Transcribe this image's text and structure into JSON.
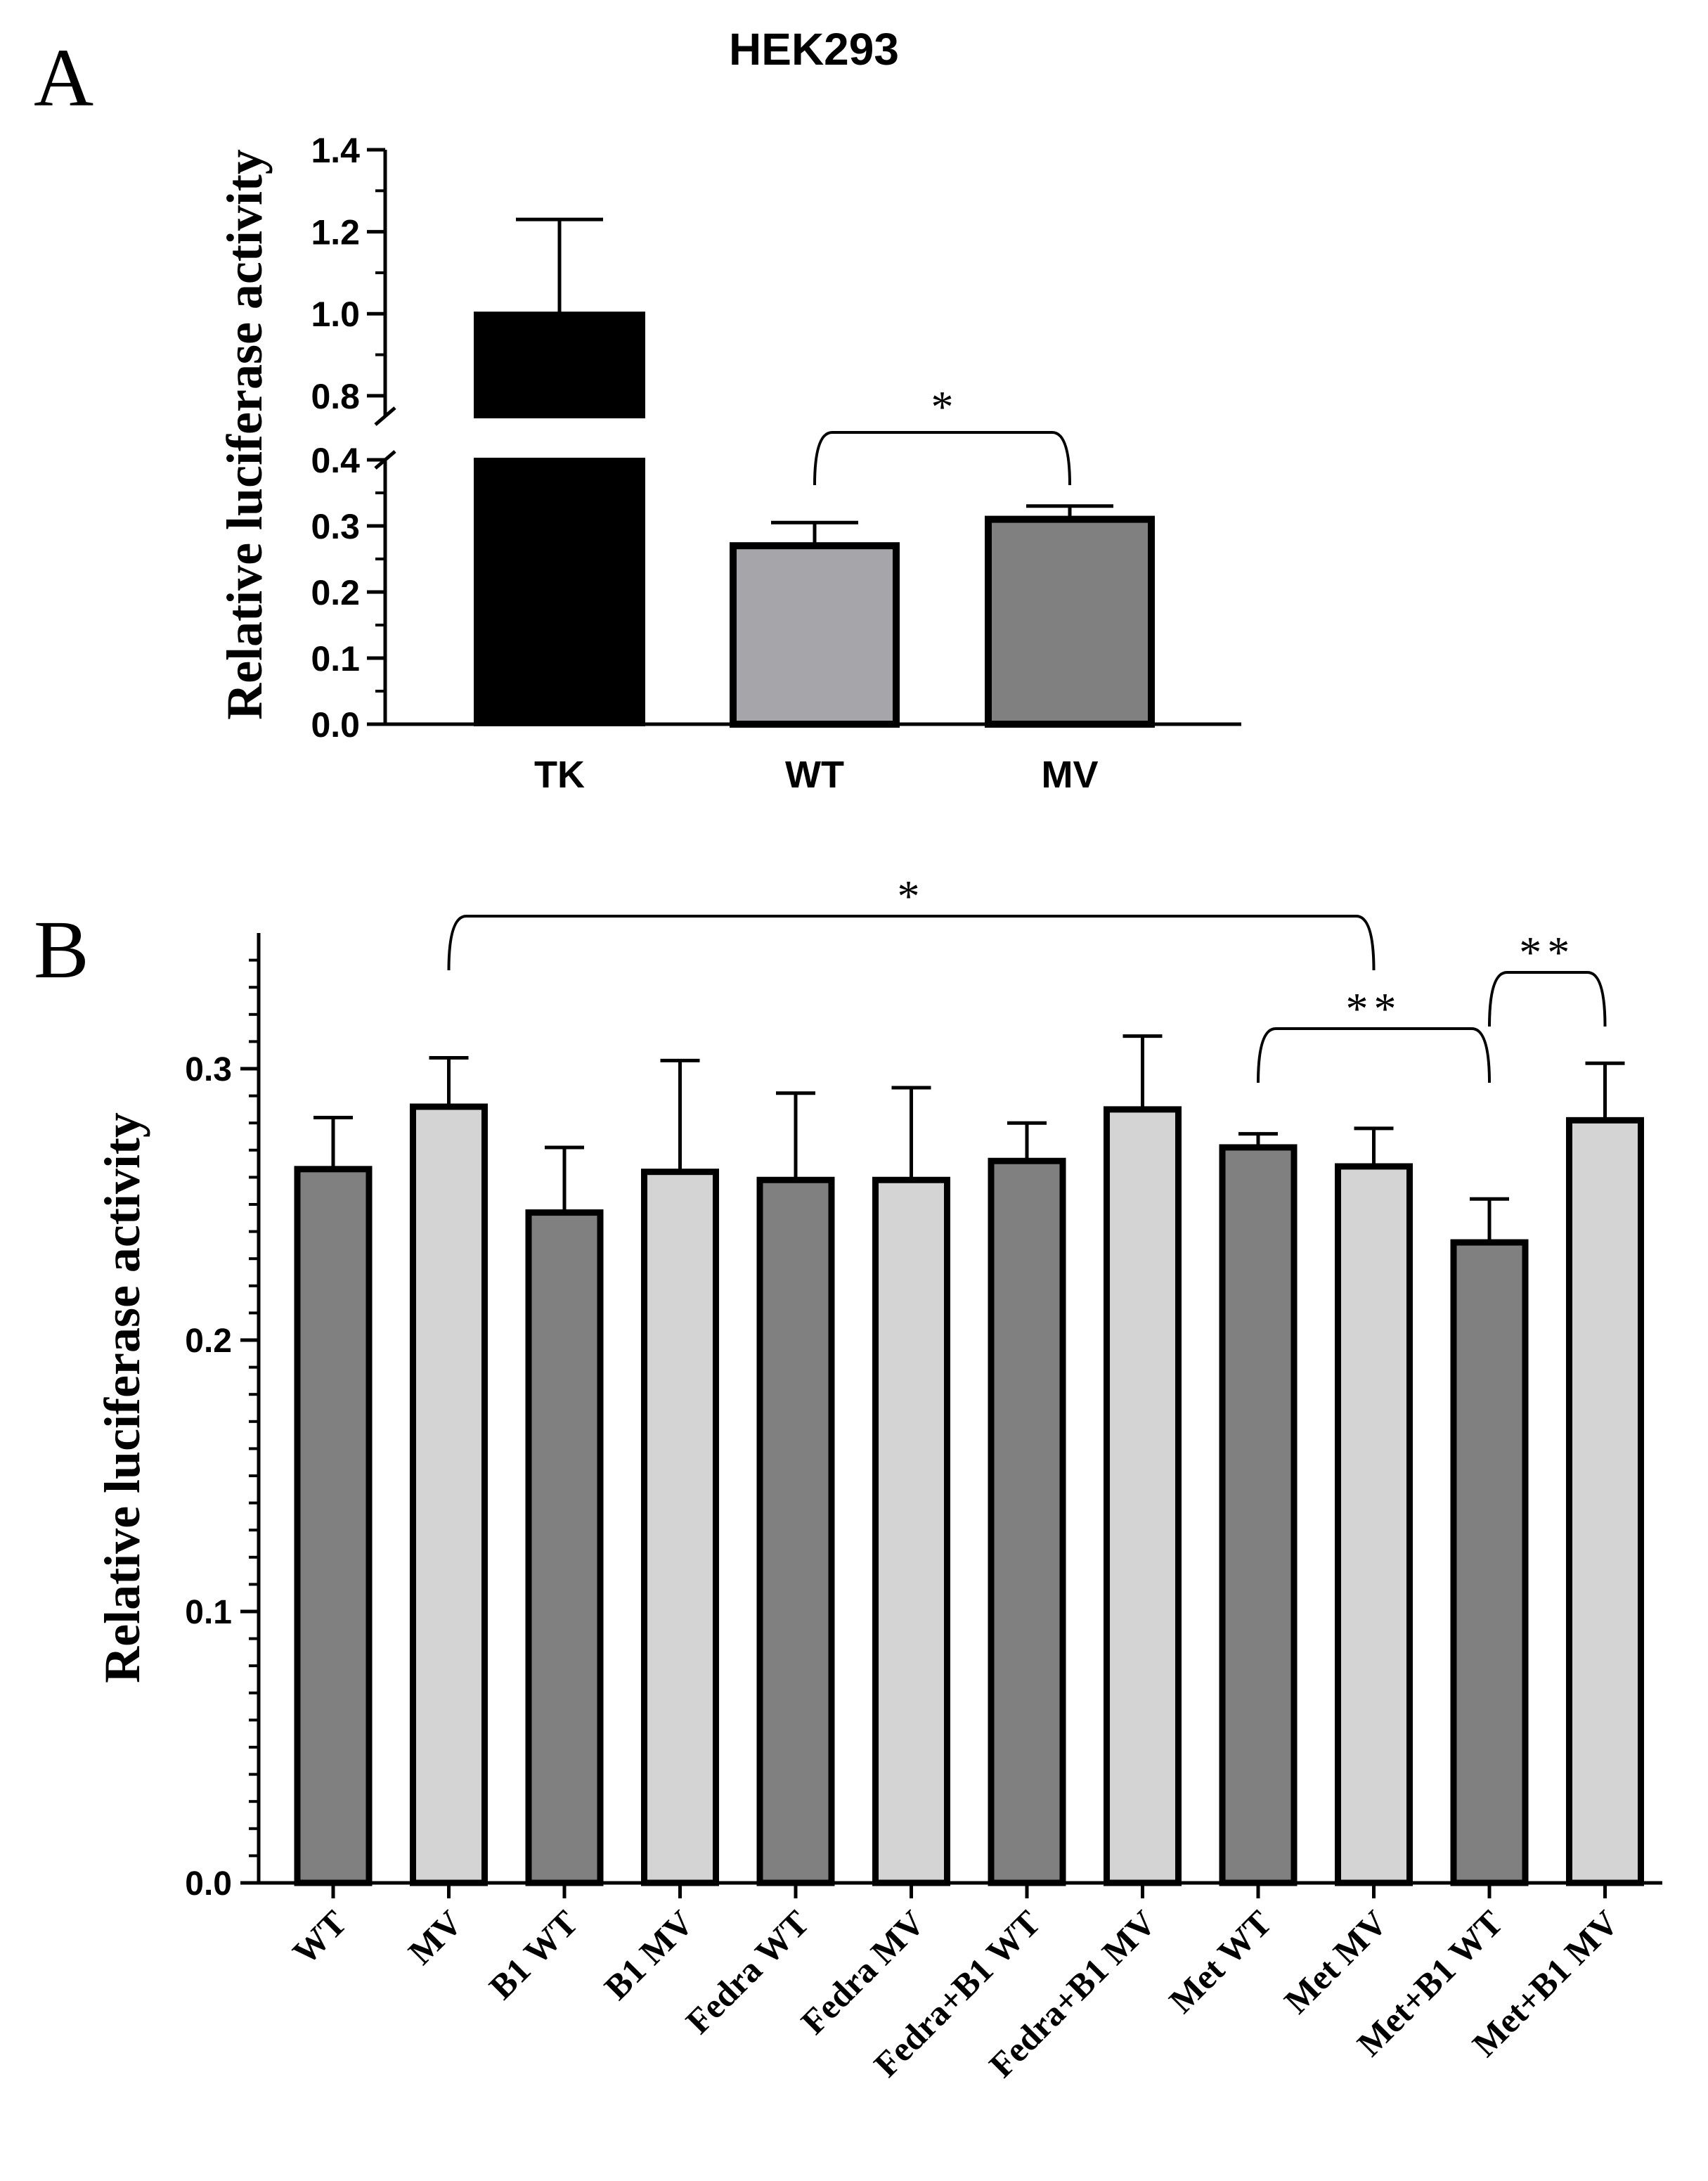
{
  "chart_data": [
    {
      "panel": "A",
      "type": "bar",
      "title": "HEK293",
      "ylabel": "Relative luciferase activity",
      "xlabel": "",
      "categories": [
        "TK",
        "WT",
        "MV"
      ],
      "values": [
        1.0,
        0.27,
        0.31
      ],
      "errors": [
        0.23,
        0.035,
        0.02
      ],
      "fills": [
        "#000000",
        "#a5a5aa",
        "#808080"
      ],
      "axis_break": [
        0.4,
        0.75
      ],
      "ylim": [
        0,
        1.4
      ],
      "yticks_lower": [
        0.0,
        0.1,
        0.2,
        0.3,
        0.4
      ],
      "yticks_upper": [
        0.8,
        1.0,
        1.2,
        1.4
      ],
      "ytick_labels": [
        "0.0",
        "0.1",
        "0.2",
        "0.3",
        "0.4",
        "0.8",
        "1.0",
        "1.2",
        "1.4"
      ],
      "significance": [
        {
          "from": "WT",
          "to": "MV",
          "label": "*"
        }
      ]
    },
    {
      "panel": "B",
      "type": "bar",
      "title": "",
      "ylabel": "Relative luciferase activity",
      "xlabel": "",
      "categories": [
        "WT",
        "MV",
        "B1 WT",
        "B1 MV",
        "Fedra WT",
        "Fedra MV",
        "Fedra+B1 WT",
        "Fedra+B1 MV",
        "Met WT",
        "Met MV",
        "Met+B1 WT",
        "Met+B1 MV"
      ],
      "values": [
        0.263,
        0.286,
        0.247,
        0.262,
        0.259,
        0.259,
        0.266,
        0.285,
        0.271,
        0.264,
        0.236,
        0.281
      ],
      "errors": [
        0.019,
        0.018,
        0.024,
        0.041,
        0.032,
        0.034,
        0.014,
        0.027,
        0.005,
        0.014,
        0.016,
        0.021
      ],
      "fills": [
        "#808080",
        "#d4d4d4",
        "#808080",
        "#d4d4d4",
        "#808080",
        "#d4d4d4",
        "#808080",
        "#d4d4d4",
        "#808080",
        "#d4d4d4",
        "#808080",
        "#d4d4d4"
      ],
      "ylim": [
        0,
        0.35
      ],
      "yticks": [
        0.0,
        0.1,
        0.2,
        0.3
      ],
      "ytick_labels": [
        "0.0",
        "0.1",
        "0.2",
        "0.3"
      ],
      "significance": [
        {
          "from": "MV",
          "to": "Met MV",
          "label": "*"
        },
        {
          "from": "Met WT",
          "to": "Met+B1 WT",
          "label": "**"
        },
        {
          "from": "Met+B1 WT",
          "to": "Met+B1 MV",
          "label": "**"
        }
      ]
    }
  ],
  "panel_labels": {
    "a": "A",
    "b": "B"
  }
}
